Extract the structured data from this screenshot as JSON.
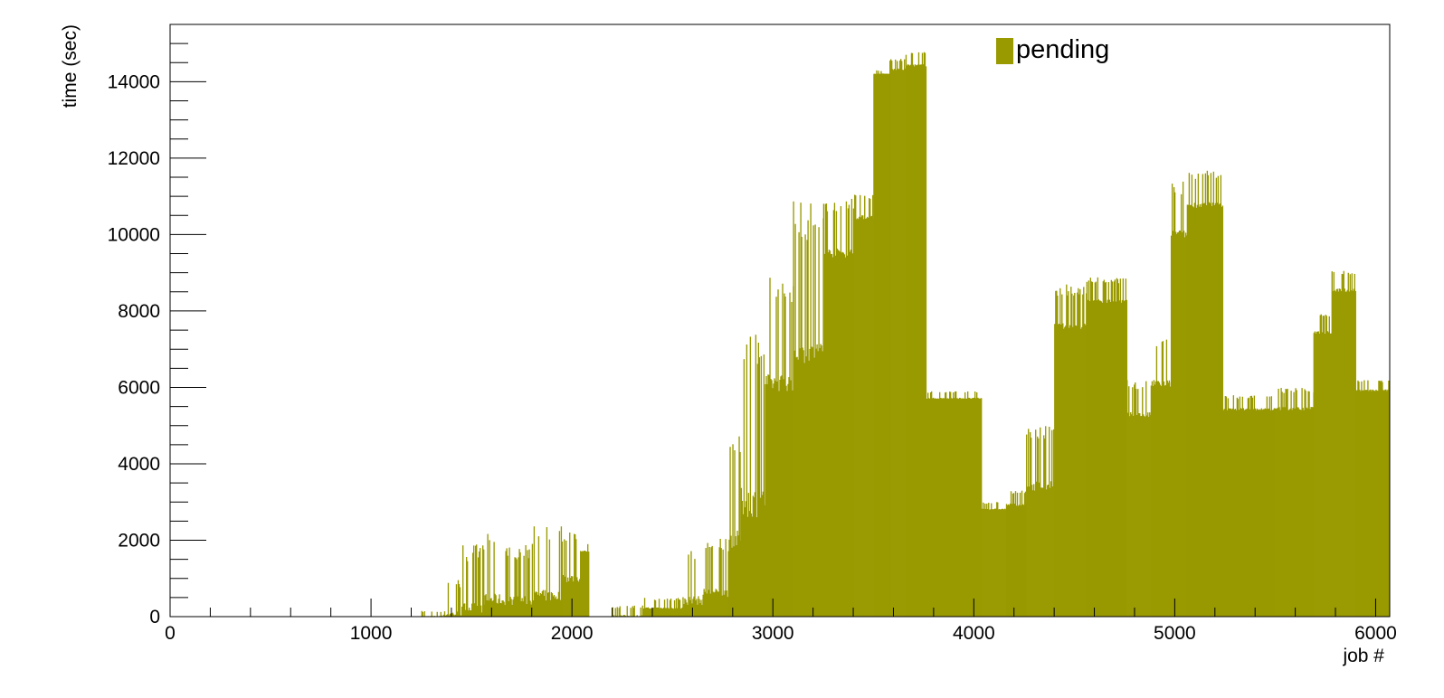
{
  "chart_data": {
    "type": "bar",
    "xlabel": "job #",
    "ylabel": "time (sec)",
    "xlim": [
      0,
      6070
    ],
    "ylim": [
      0,
      15500
    ],
    "x_ticks": [
      0,
      1000,
      2000,
      3000,
      4000,
      5000,
      6000
    ],
    "x_tick_labels": [
      "0",
      "1000",
      "2000",
      "3000",
      "4000",
      "5000",
      "6000"
    ],
    "y_ticks": [
      0,
      2000,
      4000,
      6000,
      8000,
      10000,
      12000,
      14000
    ],
    "y_tick_labels": [
      "0",
      "2000",
      "4000",
      "6000",
      "8000",
      "10000",
      "12000",
      "14000"
    ],
    "grid": false,
    "legend_position": "top-right",
    "series": [
      {
        "name": "pending",
        "color": "#999900",
        "segments": [
          {
            "x": [
              1250,
              1350
            ],
            "base": 0,
            "peak": 150
          },
          {
            "x": [
              1350,
              1450
            ],
            "base": 0,
            "peak": 1000
          },
          {
            "x": [
              1450,
              1560
            ],
            "base": 100,
            "peak": 1900
          },
          {
            "x": [
              1560,
              1650
            ],
            "base": 300,
            "peak": 2300
          },
          {
            "x": [
              1650,
              1800
            ],
            "base": 300,
            "peak": 1900
          },
          {
            "x": [
              1800,
              1950
            ],
            "base": 400,
            "peak": 2400
          },
          {
            "x": [
              1950,
              2040
            ],
            "base": 900,
            "peak": 2300
          },
          {
            "x": [
              2040,
              2085
            ],
            "base": 1700,
            "peak": 1900
          },
          {
            "x": [
              2200,
              2350
            ],
            "base": 0,
            "peak": 300
          },
          {
            "x": [
              2350,
              2550
            ],
            "base": 200,
            "peak": 500
          },
          {
            "x": [
              2550,
              2650
            ],
            "base": 300,
            "peak": 1900
          },
          {
            "x": [
              2650,
              2780
            ],
            "base": 500,
            "peak": 2100
          },
          {
            "x": [
              2780,
              2840
            ],
            "base": 1800,
            "peak": 4800
          },
          {
            "x": [
              2840,
              2960
            ],
            "base": 2600,
            "peak": 7800
          },
          {
            "x": [
              2960,
              3100
            ],
            "base": 5900,
            "peak": 8900
          },
          {
            "x": [
              3100,
              3250
            ],
            "base": 6600,
            "peak": 10900
          },
          {
            "x": [
              3250,
              3400
            ],
            "base": 9400,
            "peak": 11000
          },
          {
            "x": [
              3400,
              3500
            ],
            "base": 10400,
            "peak": 11100
          },
          {
            "x": [
              3500,
              3580
            ],
            "base": 14200,
            "peak": 14300
          },
          {
            "x": [
              3580,
              3660
            ],
            "base": 14300,
            "peak": 14600
          },
          {
            "x": [
              3660,
              3760
            ],
            "base": 14400,
            "peak": 14800
          },
          {
            "x": [
              3760,
              4035
            ],
            "base": 5700,
            "peak": 5900
          },
          {
            "x": [
              4035,
              4160
            ],
            "base": 2800,
            "peak": 3000
          },
          {
            "x": [
              4160,
              4260
            ],
            "base": 2900,
            "peak": 3300
          },
          {
            "x": [
              4260,
              4400
            ],
            "base": 3300,
            "peak": 5000
          },
          {
            "x": [
              4400,
              4560
            ],
            "base": 7500,
            "peak": 8700
          },
          {
            "x": [
              4560,
              4760
            ],
            "base": 8200,
            "peak": 8900
          },
          {
            "x": [
              4760,
              4880
            ],
            "base": 5200,
            "peak": 6200
          },
          {
            "x": [
              4880,
              4980
            ],
            "base": 6000,
            "peak": 7300
          },
          {
            "x": [
              4980,
              5060
            ],
            "base": 9900,
            "peak": 11400
          },
          {
            "x": [
              5060,
              5240
            ],
            "base": 10700,
            "peak": 11700
          },
          {
            "x": [
              5240,
              5500
            ],
            "base": 5400,
            "peak": 5800
          },
          {
            "x": [
              5500,
              5690
            ],
            "base": 5400,
            "peak": 6000
          },
          {
            "x": [
              5690,
              5780
            ],
            "base": 7400,
            "peak": 8000
          },
          {
            "x": [
              5780,
              5900
            ],
            "base": 8500,
            "peak": 9100
          },
          {
            "x": [
              5900,
              6065
            ],
            "base": 5900,
            "peak": 6200
          }
        ]
      }
    ]
  }
}
